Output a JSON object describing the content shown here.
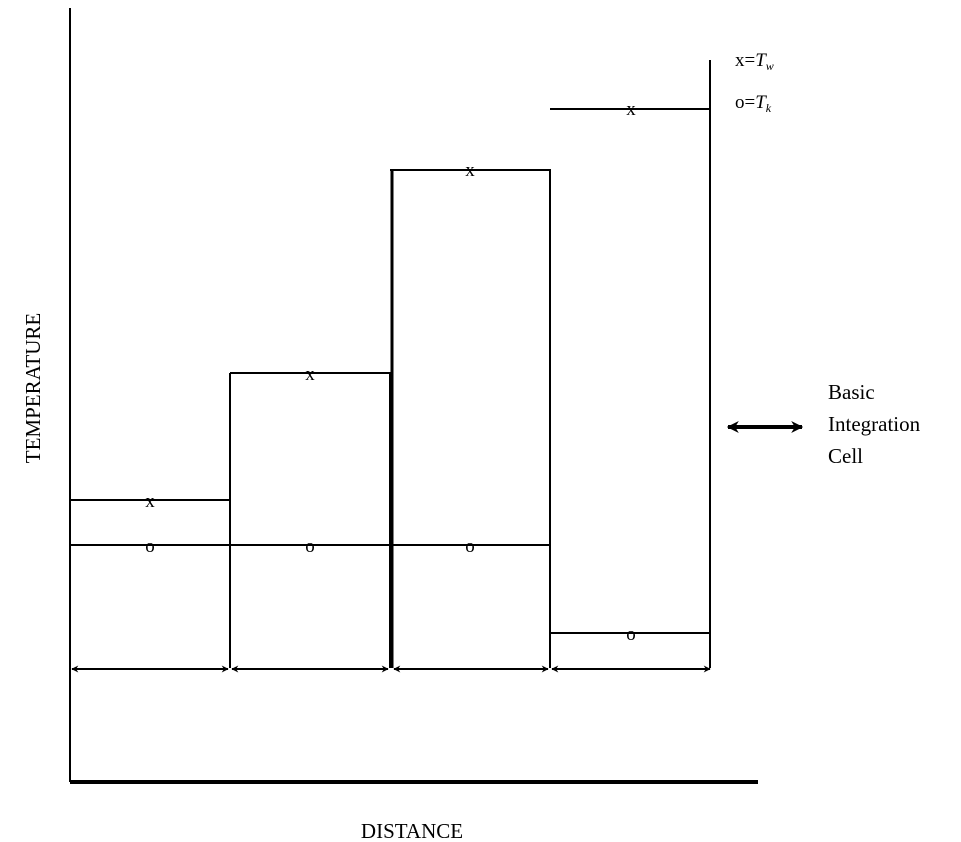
{
  "axes": {
    "x_label": "DISTANCE",
    "y_label": "TEMPERATURE"
  },
  "legend": {
    "x_entry": {
      "symbol": "x",
      "equals": "=",
      "var": "T",
      "sub": "w"
    },
    "o_entry": {
      "symbol": "o",
      "equals": "=",
      "var": "T",
      "sub": "k"
    }
  },
  "cells": [
    {
      "x_marker": "x",
      "o_marker": "o"
    },
    {
      "x_marker": "x",
      "o_marker": "o"
    },
    {
      "x_marker": "x",
      "o_marker": "o"
    },
    {
      "x_marker": "x",
      "o_marker": "o"
    }
  ],
  "cell_legend": {
    "line1": "Basic",
    "line2": "Integration",
    "line3": "Cell"
  }
}
